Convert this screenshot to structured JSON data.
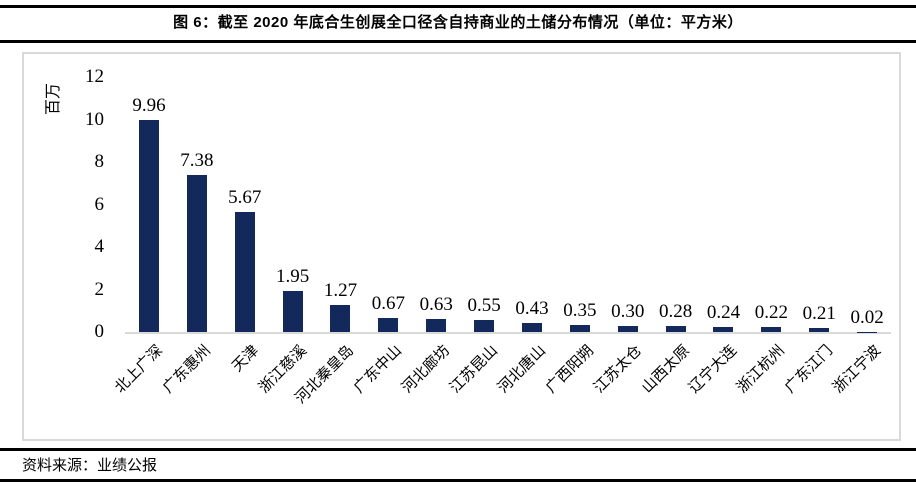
{
  "figure": {
    "title": "图 6：截至 2020 年底合生创展全口径含自持商业的土储分布情况（单位：平方米）",
    "source": "资料来源：业绩公报"
  },
  "chart_data": {
    "type": "bar",
    "title": "图 6：截至 2020 年底合生创展全口径含自持商业的土储分布情况（单位：平方米）",
    "categories": [
      "北上广深",
      "广东惠州",
      "天津",
      "浙江慈溪",
      "河北秦皇岛",
      "广东中山",
      "河北廊坊",
      "江苏昆山",
      "河北唐山",
      "广西阳朔",
      "江苏太仓",
      "山西太原",
      "辽宁大连",
      "浙江杭州",
      "广东江门",
      "浙江宁波"
    ],
    "values": [
      9.96,
      7.38,
      5.67,
      1.95,
      1.27,
      0.67,
      0.63,
      0.55,
      0.43,
      0.35,
      0.3,
      0.28,
      0.24,
      0.22,
      0.21,
      0.02
    ],
    "value_labels": [
      "9.96",
      "7.38",
      "5.67",
      "1.95",
      "1.27",
      "0.67",
      "0.63",
      "0.55",
      "0.43",
      "0.35",
      "0.30",
      "0.28",
      "0.24",
      "0.22",
      "0.21",
      "0.02"
    ],
    "xlabel": "",
    "ylabel": "百万",
    "ylim": [
      0,
      12
    ],
    "yticks": [
      0,
      2,
      4,
      6,
      8,
      10,
      12
    ],
    "grid": false,
    "legend": false,
    "bar_color": "#14295b",
    "axis_line_color": "#d9d9d9"
  }
}
